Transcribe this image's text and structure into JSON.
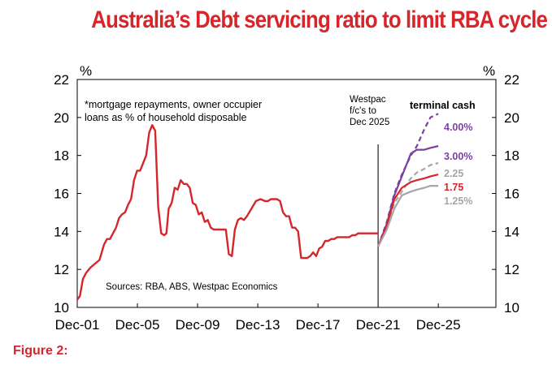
{
  "title": "Australia’s Debt servicing ratio to limit RBA cycle",
  "figure_label": "Figure 2:",
  "colors": {
    "title_red": "#d6262b",
    "history": "#d6262b",
    "purple": "#7b3fa0",
    "grey": "#a6a6a6",
    "red_forecast": "#d6262b"
  },
  "chart_data": {
    "type": "line",
    "xlabel": "",
    "ylabel": "%",
    "ylabel_right": "%",
    "ylim": [
      10,
      22
    ],
    "yticks": [
      10,
      12,
      14,
      16,
      18,
      20,
      22
    ],
    "xlim": [
      2001.92,
      2029.75
    ],
    "xticks": [
      {
        "label": "Dec-01",
        "value": 2001.92
      },
      {
        "label": "Dec-05",
        "value": 2005.92
      },
      {
        "label": "Dec-09",
        "value": 2009.92
      },
      {
        "label": "Dec-13",
        "value": 2013.92
      },
      {
        "label": "Dec-17",
        "value": 2017.92
      },
      {
        "label": "Dec-21",
        "value": 2021.92
      },
      {
        "label": "Dec-25",
        "value": 2025.92
      }
    ],
    "annotation_note": "*mortgage repayments, owner occupier loans as % of household disposable",
    "annotation_note_lines": [
      "*mortgage repayments, owner occupier",
      "loans as % of household disposable"
    ],
    "source": "Sources: RBA, ABS, Westpac Economics",
    "forecast_marker": {
      "x": 2021.92,
      "label_lines": [
        "Westpac",
        "f/c's to",
        "Dec 2025"
      ]
    },
    "legend_title": "terminal cash",
    "series": [
      {
        "name": "Historical debt servicing ratio",
        "style": "solid",
        "color": "#d6262b",
        "label": "",
        "x": [
          2001.92,
          2002.1,
          2002.3,
          2002.5,
          2002.8,
          2003.1,
          2003.4,
          2003.7,
          2003.9,
          2004.1,
          2004.3,
          2004.5,
          2004.7,
          2004.9,
          2005.1,
          2005.3,
          2005.5,
          2005.7,
          2005.9,
          2006.1,
          2006.3,
          2006.5,
          2006.7,
          2006.9,
          2007.1,
          2007.3,
          2007.5,
          2007.7,
          2007.85,
          2008.0,
          2008.2,
          2008.4,
          2008.6,
          2008.8,
          2009.0,
          2009.2,
          2009.4,
          2009.6,
          2009.8,
          2010.0,
          2010.2,
          2010.4,
          2010.6,
          2010.8,
          2011.0,
          2011.2,
          2011.4,
          2011.6,
          2011.8,
          2012.0,
          2012.2,
          2012.4,
          2012.6,
          2012.8,
          2013.0,
          2013.2,
          2013.5,
          2013.8,
          2014.1,
          2014.4,
          2014.6,
          2014.8,
          2015.0,
          2015.2,
          2015.4,
          2015.6,
          2015.8,
          2016.0,
          2016.2,
          2016.4,
          2016.6,
          2016.8,
          2017.0,
          2017.2,
          2017.4,
          2017.6,
          2017.8,
          2018.0,
          2018.2,
          2018.4,
          2018.6,
          2018.8,
          2019.0,
          2019.2,
          2019.4,
          2019.6,
          2019.8,
          2020.0,
          2020.2,
          2020.4,
          2020.6,
          2020.8,
          2021.0,
          2021.2,
          2021.4,
          2021.6,
          2021.8,
          2021.92
        ],
        "values": [
          10.4,
          10.6,
          11.5,
          11.8,
          12.1,
          12.3,
          12.5,
          13.3,
          13.6,
          13.6,
          13.9,
          14.2,
          14.7,
          14.9,
          15.0,
          15.4,
          15.7,
          16.7,
          17.2,
          17.2,
          17.6,
          18.0,
          19.2,
          19.6,
          19.3,
          15.3,
          13.9,
          13.8,
          13.9,
          15.2,
          15.5,
          16.3,
          16.2,
          16.7,
          16.5,
          16.5,
          16.3,
          15.5,
          15.4,
          14.9,
          15.0,
          14.5,
          14.6,
          14.2,
          14.1,
          14.1,
          14.1,
          14.1,
          14.1,
          12.8,
          12.7,
          14.1,
          14.6,
          14.7,
          14.6,
          14.8,
          15.2,
          15.6,
          15.7,
          15.6,
          15.6,
          15.7,
          15.7,
          15.7,
          15.6,
          15.0,
          14.8,
          14.8,
          14.2,
          14.2,
          14.0,
          12.6,
          12.6,
          12.6,
          12.7,
          12.9,
          12.7,
          13.1,
          13.2,
          13.5,
          13.5,
          13.6,
          13.6,
          13.7,
          13.7,
          13.7,
          13.7,
          13.7,
          13.8,
          13.8,
          13.9,
          13.9,
          13.9,
          13.9,
          13.9,
          13.9,
          13.9,
          13.9
        ]
      },
      {
        "name": "4.00%",
        "style": "dashed",
        "color": "#7b3fa0",
        "label": "4.00%",
        "x": [
          2021.92,
          2022.5,
          2023.0,
          2023.5,
          2024.1,
          2024.5,
          2025.0,
          2025.4,
          2025.92
        ],
        "values": [
          13.2,
          14.5,
          16.0,
          17.0,
          18.0,
          18.5,
          19.4,
          20.0,
          20.2
        ]
      },
      {
        "name": "3.00%",
        "style": "solid",
        "color": "#7b3fa0",
        "label": "3.00%",
        "x": [
          2021.92,
          2022.5,
          2023.0,
          2023.5,
          2024.1,
          2024.5,
          2025.0,
          2025.4,
          2025.92
        ],
        "values": [
          13.2,
          14.4,
          15.9,
          16.9,
          18.1,
          18.3,
          18.3,
          18.4,
          18.5
        ]
      },
      {
        "name": "2.25",
        "style": "dashed",
        "color": "#a6a6a6",
        "label": "2.25",
        "x": [
          2021.92,
          2022.5,
          2023.0,
          2023.5,
          2024.1,
          2024.5,
          2025.0,
          2025.4,
          2025.92
        ],
        "values": [
          13.2,
          14.2,
          15.5,
          16.1,
          16.8,
          17.1,
          17.3,
          17.5,
          17.6
        ]
      },
      {
        "name": "1.75",
        "style": "solid",
        "color": "#d6262b",
        "label": "1.75",
        "x": [
          2021.92,
          2022.5,
          2023.0,
          2023.5,
          2024.1,
          2024.5,
          2025.0,
          2025.4,
          2025.92
        ],
        "values": [
          13.2,
          14.3,
          15.7,
          16.3,
          16.6,
          16.7,
          16.8,
          16.9,
          17.0
        ]
      },
      {
        "name": "1.25%",
        "style": "solid",
        "color": "#a6a6a6",
        "label": "1.25%",
        "x": [
          2021.92,
          2022.5,
          2023.0,
          2023.5,
          2024.1,
          2024.5,
          2025.0,
          2025.4,
          2025.92
        ],
        "values": [
          13.2,
          14.1,
          15.2,
          15.9,
          16.1,
          16.2,
          16.3,
          16.4,
          16.4
        ]
      }
    ]
  }
}
